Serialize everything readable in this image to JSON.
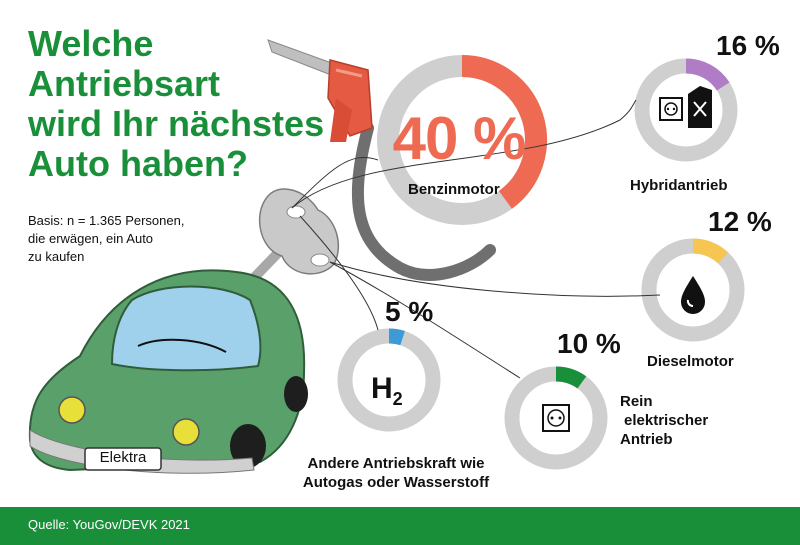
{
  "title_lines": [
    "Welche",
    "Antriebsart",
    "wird Ihr nächstes",
    "Auto haben?"
  ],
  "basis_lines": [
    "Basis: n = 1.365 Personen,",
    "die erwägen, ein Auto",
    "zu kaufen"
  ],
  "source": "Quelle: YouGov/DEVK 2021",
  "license_plate": "Elektra",
  "hydrogen_symbol": "H",
  "hydrogen_subscript": "2",
  "colors": {
    "brand_green": "#1a8f3a",
    "ring_gray": "#cfcfcf",
    "benzin": "#ee6a53",
    "hybrid": "#b07cc6",
    "diesel": "#f7c652",
    "elektro": "#1a8f3a",
    "andere": "#3c9bd7",
    "car_body": "#5aa06a"
  },
  "icons": [
    "fuel-nozzle-icon",
    "power-socket-icon",
    "fuel-canister-icon",
    "oil-drop-icon",
    "hydrogen-icon",
    "wind-up-key-icon",
    "car-icon"
  ],
  "chart_data": {
    "type": "pie",
    "unit": "%",
    "categories": [
      "Benzinmotor",
      "Hybridantrieb",
      "Dieselmotor",
      "Rein elektrischer Antrieb",
      "Andere Antriebskraft wie Autogas oder Wasserstoff"
    ],
    "values": [
      40,
      16,
      12,
      10,
      5
    ],
    "value_labels": [
      "40 %",
      "16 %",
      "12 %",
      "10 %",
      "5 %"
    ],
    "label_lines": [
      [
        "Benzinmotor"
      ],
      [
        "Hybridantrieb"
      ],
      [
        "Dieselmotor"
      ],
      [
        "Rein",
        "elektrischer",
        "Antrieb"
      ],
      [
        "Andere Antriebskraft wie",
        "Autogas oder Wasserstoff"
      ]
    ]
  }
}
